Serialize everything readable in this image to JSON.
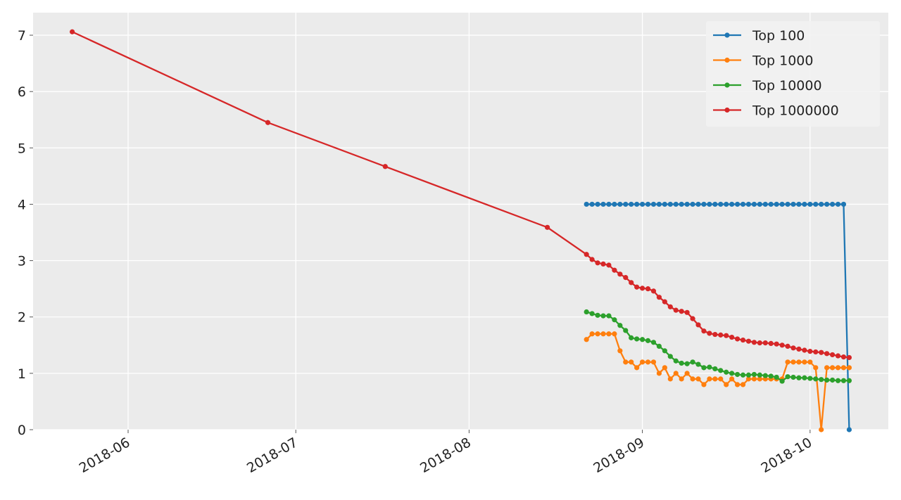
{
  "chart_data": {
    "type": "line",
    "x": [
      "2018-05-22",
      "2018-06-26",
      "2018-07-17",
      "2018-08-15",
      "2018-08-22",
      "2018-08-23",
      "2018-08-24",
      "2018-08-25",
      "2018-08-26",
      "2018-08-27",
      "2018-08-28",
      "2018-08-29",
      "2018-08-30",
      "2018-08-31",
      "2018-09-01",
      "2018-09-02",
      "2018-09-03",
      "2018-09-04",
      "2018-09-05",
      "2018-09-06",
      "2018-09-07",
      "2018-09-08",
      "2018-09-09",
      "2018-09-10",
      "2018-09-11",
      "2018-09-12",
      "2018-09-13",
      "2018-09-14",
      "2018-09-15",
      "2018-09-16",
      "2018-09-17",
      "2018-09-18",
      "2018-09-19",
      "2018-09-20",
      "2018-09-21",
      "2018-09-22",
      "2018-09-23",
      "2018-09-24",
      "2018-09-25",
      "2018-09-26",
      "2018-09-27",
      "2018-09-28",
      "2018-09-29",
      "2018-09-30",
      "2018-10-01",
      "2018-10-02",
      "2018-10-03",
      "2018-10-04",
      "2018-10-05",
      "2018-10-06",
      "2018-10-07",
      "2018-10-08"
    ],
    "series": [
      {
        "name": "Top 100",
        "color": "#1f77b4",
        "values": [
          null,
          null,
          null,
          null,
          4,
          4,
          4,
          4,
          4,
          4,
          4,
          4,
          4,
          4,
          4,
          4,
          4,
          4,
          4,
          4,
          4,
          4,
          4,
          4,
          4,
          4,
          4,
          4,
          4,
          4,
          4,
          4,
          4,
          4,
          4,
          4,
          4,
          4,
          4,
          4,
          4,
          4,
          4,
          4,
          4,
          4,
          4,
          4,
          4,
          4,
          4,
          0
        ]
      },
      {
        "name": "Top 1000",
        "color": "#ff7f0e",
        "values": [
          null,
          null,
          null,
          null,
          1.6,
          1.7,
          1.7,
          1.7,
          1.7,
          1.7,
          1.4,
          1.2,
          1.2,
          1.1,
          1.2,
          1.2,
          1.2,
          1.0,
          1.1,
          0.9,
          1.0,
          0.9,
          1.0,
          0.9,
          0.9,
          0.8,
          0.9,
          0.9,
          0.9,
          0.8,
          0.9,
          0.8,
          0.8,
          0.9,
          0.9,
          0.9,
          0.9,
          0.9,
          0.9,
          0.9,
          1.2,
          1.2,
          1.2,
          1.2,
          1.2,
          1.1,
          0.0,
          1.1,
          1.1,
          1.1,
          1.1,
          1.1
        ]
      },
      {
        "name": "Top 10000",
        "color": "#2ca02c",
        "values": [
          null,
          null,
          null,
          null,
          2.09,
          2.06,
          2.03,
          2.02,
          2.02,
          1.95,
          1.85,
          1.76,
          1.63,
          1.61,
          1.6,
          1.58,
          1.55,
          1.48,
          1.4,
          1.3,
          1.22,
          1.18,
          1.17,
          1.2,
          1.16,
          1.1,
          1.11,
          1.08,
          1.05,
          1.02,
          1.0,
          0.98,
          0.97,
          0.97,
          0.98,
          0.97,
          0.96,
          0.95,
          0.93,
          0.86,
          0.94,
          0.93,
          0.92,
          0.92,
          0.91,
          0.9,
          0.89,
          0.88,
          0.88,
          0.87,
          0.87,
          0.87
        ]
      },
      {
        "name": "Top 1000000",
        "color": "#d62728",
        "values": [
          7.06,
          5.45,
          4.67,
          3.59,
          3.11,
          3.02,
          2.96,
          2.94,
          2.92,
          2.83,
          2.76,
          2.7,
          2.61,
          2.53,
          2.51,
          2.5,
          2.46,
          2.35,
          2.27,
          2.18,
          2.12,
          2.1,
          2.08,
          1.97,
          1.86,
          1.75,
          1.71,
          1.69,
          1.68,
          1.67,
          1.64,
          1.61,
          1.59,
          1.57,
          1.55,
          1.54,
          1.54,
          1.53,
          1.52,
          1.5,
          1.48,
          1.45,
          1.43,
          1.41,
          1.39,
          1.38,
          1.37,
          1.35,
          1.33,
          1.31,
          1.29,
          1.28
        ]
      }
    ],
    "xlim": [
      "2018-05-15",
      "2018-10-15"
    ],
    "xticks": [
      {
        "value": "2018-06-01",
        "label": "2018-06"
      },
      {
        "value": "2018-07-01",
        "label": "2018-07"
      },
      {
        "value": "2018-08-01",
        "label": "2018-08"
      },
      {
        "value": "2018-09-01",
        "label": "2018-09"
      },
      {
        "value": "2018-10-01",
        "label": "2018-10"
      }
    ],
    "ylim": [
      0,
      7.4
    ],
    "yticks": [
      0,
      1,
      2,
      3,
      4,
      5,
      6,
      7
    ],
    "grid": true,
    "legend": "upper right"
  }
}
